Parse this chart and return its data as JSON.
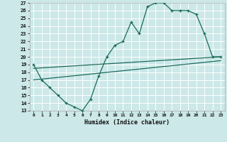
{
  "xlabel": "Humidex (Indice chaleur)",
  "xlim": [
    -0.5,
    23.5
  ],
  "ylim": [
    13,
    27
  ],
  "xticks": [
    0,
    1,
    2,
    3,
    4,
    5,
    6,
    7,
    8,
    9,
    10,
    11,
    12,
    13,
    14,
    15,
    16,
    17,
    18,
    19,
    20,
    21,
    22,
    23
  ],
  "yticks": [
    13,
    14,
    15,
    16,
    17,
    18,
    19,
    20,
    21,
    22,
    23,
    24,
    25,
    26,
    27
  ],
  "bg_color": "#cce8e8",
  "line_color": "#1a6b5a",
  "grid_color": "#ffffff",
  "line1_x": [
    0,
    1,
    2,
    3,
    4,
    5,
    6,
    7,
    8,
    9,
    10,
    11,
    12,
    13,
    14,
    15,
    16,
    17,
    18,
    19,
    20,
    21,
    22,
    23
  ],
  "line1_y": [
    19,
    17,
    16,
    15,
    14,
    13.5,
    13,
    14.5,
    17.5,
    20,
    21.5,
    22,
    24.5,
    23,
    26.5,
    27,
    27,
    26,
    26,
    26,
    25.5,
    23,
    20,
    20
  ],
  "line2_x": [
    0,
    23
  ],
  "line2_y": [
    18.5,
    20.0
  ],
  "line3_x": [
    0,
    23
  ],
  "line3_y": [
    17.0,
    19.5
  ]
}
